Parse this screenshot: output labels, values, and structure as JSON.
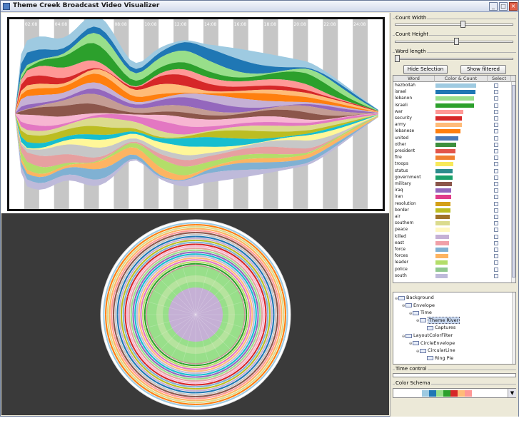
{
  "window": {
    "title": "Theme Creek Broadcast Video Visualizer"
  },
  "colors": {
    "stream_palette": [
      "#9ecae1",
      "#1f77b4",
      "#98df8a",
      "#2ca02c",
      "#ff9896",
      "#d62728",
      "#ffbb78",
      "#ff7f0e",
      "#c5b0d5",
      "#9467bd",
      "#c49c94",
      "#8c564b",
      "#f7b6d2",
      "#e377c2",
      "#dbdb8d",
      "#bcbd22",
      "#17becf",
      "#fff799",
      "#c7c7c7",
      "#e6a0a0",
      "#b3de69",
      "#fdb462",
      "#80b1d3",
      "#bebada"
    ],
    "schema_palette": [
      "#9ecae1",
      "#1f77b4",
      "#98df8a",
      "#2ca02c",
      "#d62728",
      "#ffbb78",
      "#ff9896"
    ]
  },
  "stream_labels": [
    "01:08",
    "02:08",
    "03:08",
    "04:08",
    "05:08",
    "06:08",
    "07:08",
    "08:08",
    "09:08",
    "10:08",
    "11:08",
    "12:08",
    "13:08",
    "14:08",
    "15:08",
    "16:08",
    "17:08",
    "18:08",
    "19:08",
    "20:08",
    "21:08",
    "22:08",
    "23:08",
    "24:08",
    "00:08"
  ],
  "controls": {
    "count_width_label": "Count Width",
    "count_width_level": 0.58,
    "count_height_label": "Count Height",
    "count_height_level": 0.52,
    "word_length_label": "Word length",
    "word_length_level": 0.0,
    "hide_selection": "Hide Selection",
    "show_filtered": "Show filtered"
  },
  "table": {
    "headers": [
      "Word",
      "Color & Count",
      "Select"
    ],
    "rows": [
      {
        "word": "hezbollah",
        "color": "#9ecae1",
        "count": 0.98
      },
      {
        "word": "israel",
        "color": "#1f77b4",
        "count": 0.97
      },
      {
        "word": "lebanon",
        "color": "#98df8a",
        "count": 0.93
      },
      {
        "word": "israeli",
        "color": "#2ca02c",
        "count": 0.93
      },
      {
        "word": "war",
        "color": "#ff9896",
        "count": 0.68
      },
      {
        "word": "security",
        "color": "#d62728",
        "count": 0.64
      },
      {
        "word": "army",
        "color": "#ffbb78",
        "count": 0.63
      },
      {
        "word": "lebanese",
        "color": "#ff7f0e",
        "count": 0.6
      },
      {
        "word": "united",
        "color": "#4a78b8",
        "count": 0.55
      },
      {
        "word": "other",
        "color": "#3d8f3d",
        "count": 0.5
      },
      {
        "word": "president",
        "color": "#e2554a",
        "count": 0.48
      },
      {
        "word": "fire",
        "color": "#f08030",
        "count": 0.46
      },
      {
        "word": "troops",
        "color": "#f7e95a",
        "count": 0.43
      },
      {
        "word": "status",
        "color": "#2b8c8c",
        "count": 0.42
      },
      {
        "word": "government",
        "color": "#1aa06a",
        "count": 0.41
      },
      {
        "word": "military",
        "color": "#8c564b",
        "count": 0.39
      },
      {
        "word": "iraq",
        "color": "#9467bd",
        "count": 0.38
      },
      {
        "word": "iran",
        "color": "#e03c8a",
        "count": 0.38
      },
      {
        "word": "resolution",
        "color": "#d4a017",
        "count": 0.37
      },
      {
        "word": "border",
        "color": "#bcbd22",
        "count": 0.36
      },
      {
        "word": "air",
        "color": "#a0722a",
        "count": 0.35
      },
      {
        "word": "southern",
        "color": "#dbdb8d",
        "count": 0.35
      },
      {
        "word": "peace",
        "color": "#fff7c0",
        "count": 0.34
      },
      {
        "word": "killed",
        "color": "#c5b0d5",
        "count": 0.33
      },
      {
        "word": "east",
        "color": "#f0a0a8",
        "count": 0.32
      },
      {
        "word": "force",
        "color": "#80b1d3",
        "count": 0.31
      },
      {
        "word": "forces",
        "color": "#fdb462",
        "count": 0.31
      },
      {
        "word": "leader",
        "color": "#b3de69",
        "count": 0.3
      },
      {
        "word": "police",
        "color": "#90c890",
        "count": 0.3
      },
      {
        "word": "south",
        "color": "#bebada",
        "count": 0.3
      }
    ]
  },
  "tree": {
    "nodes": [
      {
        "label": "Background",
        "depth": 0,
        "toggle": "○-"
      },
      {
        "label": "Envelope",
        "depth": 1,
        "toggle": "○-"
      },
      {
        "label": "Time",
        "depth": 2,
        "toggle": "○-"
      },
      {
        "label": "Theme River",
        "depth": 3,
        "toggle": "○-",
        "selected": true
      },
      {
        "label": "Captures",
        "depth": 4,
        "toggle": ""
      },
      {
        "label": "LayoutColorFilter",
        "depth": 1,
        "toggle": "○-"
      },
      {
        "label": "CircleEnvelope",
        "depth": 2,
        "toggle": "○-"
      },
      {
        "label": "CircularLine",
        "depth": 3,
        "toggle": "○-"
      },
      {
        "label": "Ring Pie",
        "depth": 4,
        "toggle": ""
      }
    ]
  },
  "time_control_label": "Time control",
  "color_schema_label": "Color Schema"
}
